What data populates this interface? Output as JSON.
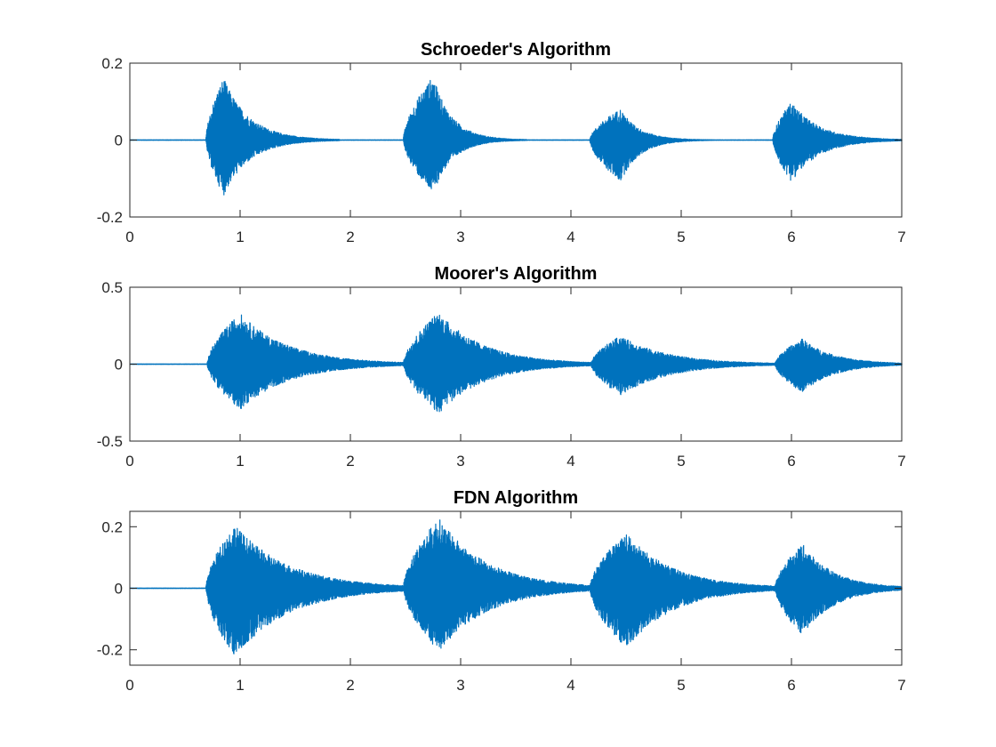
{
  "chart_data": [
    {
      "type": "line",
      "title": "Schroeder's Algorithm",
      "xlabel": "",
      "ylabel": "",
      "xlim": [
        0,
        7
      ],
      "ylim": [
        -0.2,
        0.2
      ],
      "x_ticks": [
        0,
        1,
        2,
        3,
        4,
        5,
        6,
        7
      ],
      "y_ticks": [
        -0.2,
        0,
        0.2
      ],
      "x_tick_labels": [
        "0",
        "1",
        "2",
        "3",
        "4",
        "5",
        "6",
        "7"
      ],
      "y_tick_labels": [
        "-0.2",
        "0",
        "0.2"
      ],
      "grid": false,
      "color": "#0072BD",
      "bursts": [
        {
          "onset": 0.69,
          "peak_time": 0.85,
          "pos_peak": 0.18,
          "neg_peak": -0.16,
          "decay_end": 1.6
        },
        {
          "onset": 2.48,
          "peak_time": 2.75,
          "pos_peak": 0.185,
          "neg_peak": -0.155,
          "decay_end": 3.3
        },
        {
          "onset": 4.17,
          "peak_time": 4.45,
          "pos_peak": 0.09,
          "neg_peak": -0.12,
          "decay_end": 5.0
        },
        {
          "onset": 5.83,
          "peak_time": 6.0,
          "pos_peak": 0.11,
          "neg_peak": -0.12,
          "decay_end": 6.8
        }
      ]
    },
    {
      "type": "line",
      "title": "Moorer's Algorithm",
      "xlabel": "",
      "ylabel": "",
      "xlim": [
        0,
        7
      ],
      "ylim": [
        -0.5,
        0.5
      ],
      "x_ticks": [
        0,
        1,
        2,
        3,
        4,
        5,
        6,
        7
      ],
      "y_ticks": [
        -0.5,
        0,
        0.5
      ],
      "x_tick_labels": [
        "0",
        "1",
        "2",
        "3",
        "4",
        "5",
        "6",
        "7"
      ],
      "y_tick_labels": [
        "-0.5",
        "0",
        "0.5"
      ],
      "grid": false,
      "color": "#0072BD",
      "bursts": [
        {
          "onset": 0.7,
          "peak_time": 1.0,
          "pos_peak": 0.36,
          "neg_peak": -0.32,
          "decay_end": 2.4
        },
        {
          "onset": 2.48,
          "peak_time": 2.8,
          "pos_peak": 0.37,
          "neg_peak": -0.35,
          "decay_end": 4.1
        },
        {
          "onset": 4.18,
          "peak_time": 4.45,
          "pos_peak": 0.2,
          "neg_peak": -0.22,
          "decay_end": 5.8
        },
        {
          "onset": 5.85,
          "peak_time": 6.1,
          "pos_peak": 0.18,
          "neg_peak": -0.2,
          "decay_end": 7.0
        }
      ]
    },
    {
      "type": "line",
      "title": "FDN Algorithm",
      "xlabel": "",
      "ylabel": "",
      "xlim": [
        0,
        7
      ],
      "ylim": [
        -0.25,
        0.25
      ],
      "x_ticks": [
        0,
        1,
        2,
        3,
        4,
        5,
        6,
        7
      ],
      "y_ticks": [
        -0.2,
        0,
        0.2
      ],
      "x_tick_labels": [
        "0",
        "1",
        "2",
        "3",
        "4",
        "5",
        "6",
        "7"
      ],
      "y_tick_labels": [
        "-0.2",
        "0",
        "0.2"
      ],
      "grid": false,
      "color": "#0072BD",
      "bursts": [
        {
          "onset": 0.69,
          "peak_time": 0.95,
          "pos_peak": 0.23,
          "neg_peak": -0.25,
          "decay_end": 2.5
        },
        {
          "onset": 2.48,
          "peak_time": 2.8,
          "pos_peak": 0.255,
          "neg_peak": -0.23,
          "decay_end": 4.2
        },
        {
          "onset": 4.17,
          "peak_time": 4.5,
          "pos_peak": 0.2,
          "neg_peak": -0.22,
          "decay_end": 5.85
        },
        {
          "onset": 5.85,
          "peak_time": 6.1,
          "pos_peak": 0.16,
          "neg_peak": -0.17,
          "decay_end": 7.0
        }
      ]
    }
  ]
}
